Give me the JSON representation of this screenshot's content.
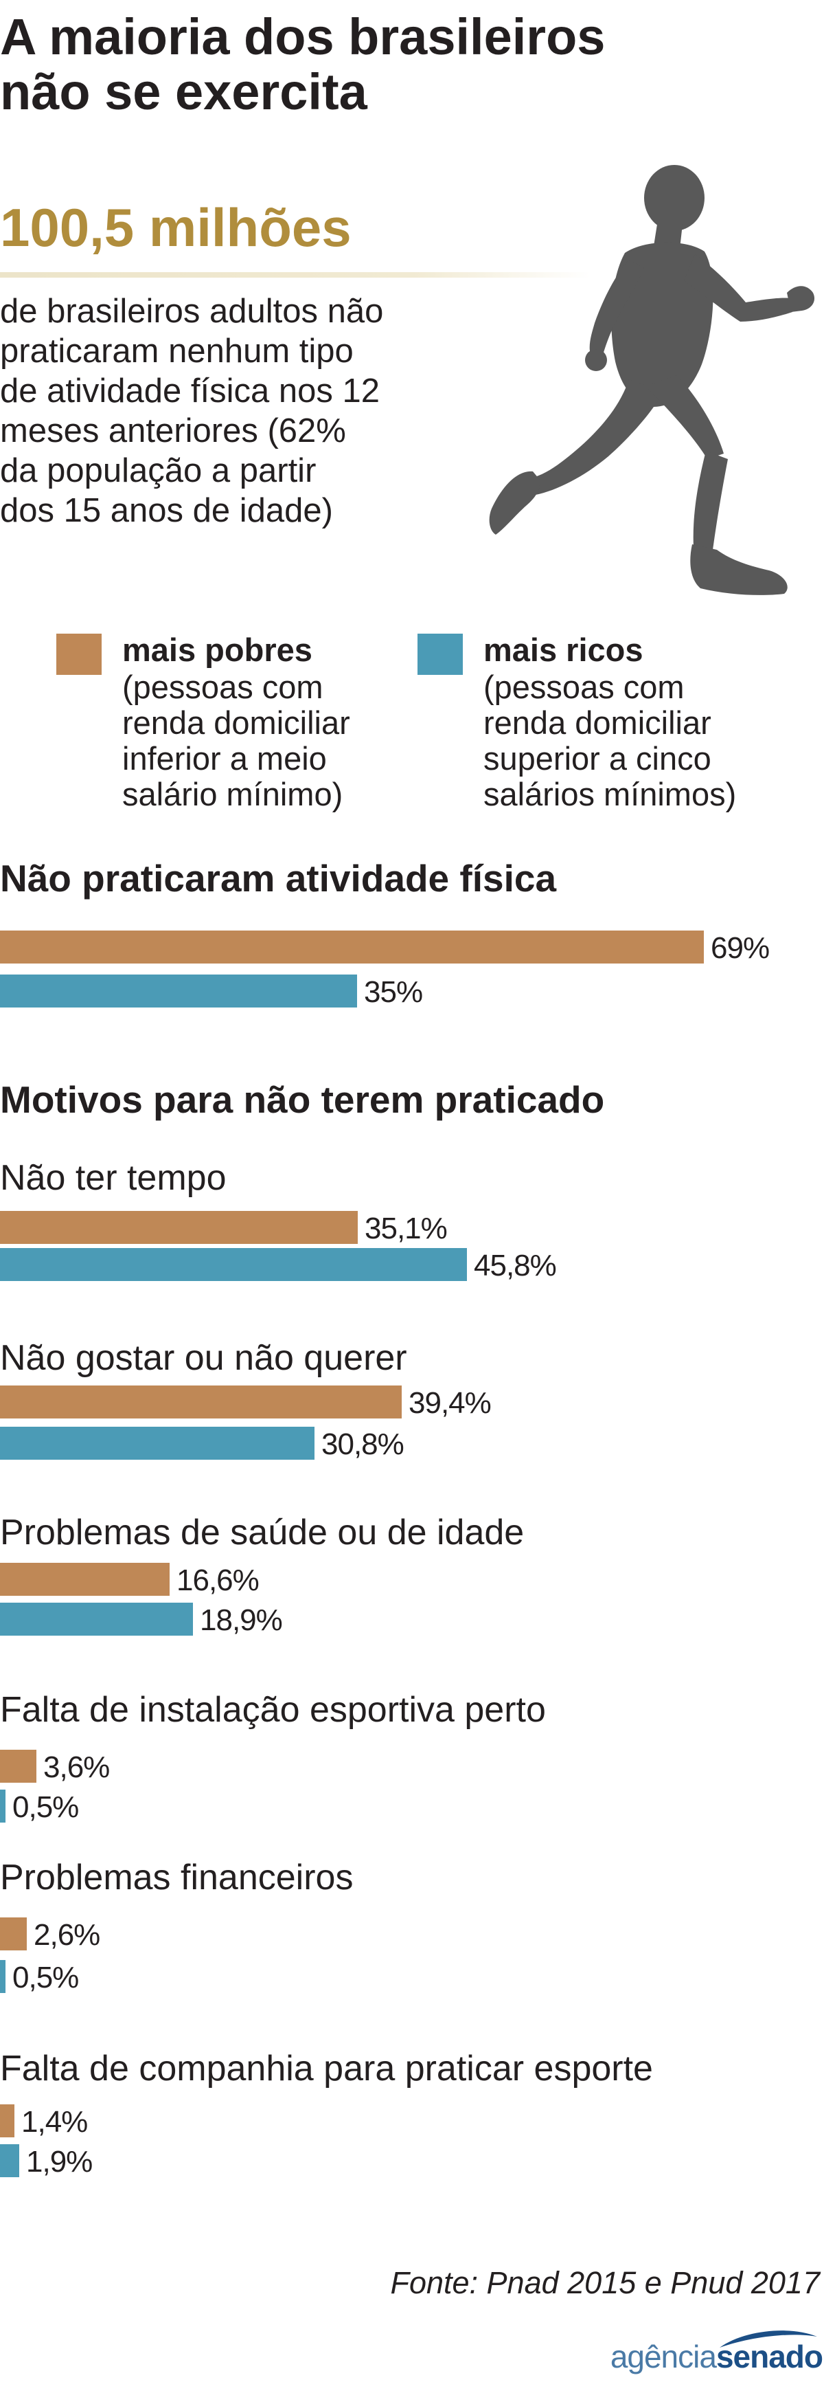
{
  "title": {
    "line1": "A maioria dos brasileiros",
    "line2": "não se exercita"
  },
  "headline_number": "100,5 milhões",
  "description": {
    "line1": "de brasileiros adultos não",
    "line2": "praticaram nenhum tipo",
    "line3": "de atividade física nos 12",
    "line4": "meses anteriores (62%",
    "line5": "da população a partir",
    "line6": "dos 15 anos de idade)"
  },
  "illustration": {
    "icon": "runner-icon",
    "color": "#595959"
  },
  "legend": {
    "poor": {
      "label": "mais pobres",
      "note1": "(pessoas com",
      "note2": "renda domiciliar",
      "note3": "inferior a meio",
      "note4": "salário mínimo)",
      "color": "#bf8856"
    },
    "rich": {
      "label": "mais ricos",
      "note1": "(pessoas com",
      "note2": "renda domiciliar",
      "note3": "superior a cinco",
      "note4": "salários mínimos)",
      "color": "#4b9bb6"
    }
  },
  "chart_data": [
    {
      "type": "bar",
      "orientation": "horizontal",
      "title": "Não praticaram atividade física",
      "series_names": [
        "mais pobres",
        "mais ricos"
      ],
      "groups": [
        {
          "label": "",
          "values": [
            69,
            35
          ],
          "value_labels": [
            "69%",
            "35%"
          ]
        }
      ]
    },
    {
      "type": "bar",
      "orientation": "horizontal",
      "title": "Motivos para não terem praticado",
      "series_names": [
        "mais pobres",
        "mais ricos"
      ],
      "groups": [
        {
          "label": "Não ter tempo",
          "values": [
            35.1,
            45.8
          ],
          "value_labels": [
            "35,1%",
            "45,8%"
          ]
        },
        {
          "label": "Não gostar ou não querer",
          "values": [
            39.4,
            30.8
          ],
          "value_labels": [
            "39,4%",
            "30,8%"
          ]
        },
        {
          "label": "Problemas de saúde ou de idade",
          "values": [
            16.6,
            18.9
          ],
          "value_labels": [
            "16,6%",
            "18,9%"
          ]
        },
        {
          "label": "Falta de instalação esportiva perto",
          "values": [
            3.6,
            0.5
          ],
          "value_labels": [
            "3,6%",
            "0,5%"
          ]
        },
        {
          "label": "Problemas financeiros",
          "values": [
            2.6,
            0.5
          ],
          "value_labels": [
            "2,6%",
            "0,5%"
          ]
        },
        {
          "label": "Falta de companhia para praticar esporte",
          "values": [
            1.4,
            1.9
          ],
          "value_labels": [
            "1,4%",
            "1,9%"
          ]
        }
      ]
    }
  ],
  "source": "Fonte: Pnad 2015 e Pnud 2017",
  "logo": {
    "part1": "agência",
    "part2": "senado"
  }
}
